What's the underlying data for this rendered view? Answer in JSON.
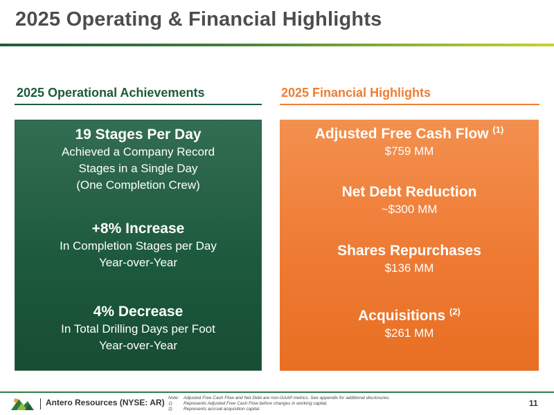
{
  "title": "2025 Operating & Financial Highlights",
  "operational": {
    "heading": "2025 Operational Achievements",
    "items": [
      {
        "title": "19 Stages Per Day",
        "lines": [
          "Achieved a Company Record",
          "Stages in a Single Day",
          "(One Completion Crew)"
        ]
      },
      {
        "title": "+8% Increase",
        "lines": [
          "In Completion Stages per Day",
          "Year-over-Year"
        ]
      },
      {
        "title": "4% Decrease",
        "lines": [
          "In Total Drilling Days per Foot",
          "Year-over-Year"
        ]
      }
    ]
  },
  "financial": {
    "heading": "2025 Financial Highlights",
    "items": [
      {
        "title": "Adjusted Free Cash Flow",
        "footnote": "(1)",
        "value": "$759 MM"
      },
      {
        "title": "Net Debt Reduction",
        "footnote": "",
        "value": "~$300 MM"
      },
      {
        "title": "Shares Repurchases",
        "footnote": "",
        "value": "$136 MM"
      },
      {
        "title": "Acquisitions",
        "footnote": "(2)",
        "value": "$261 MM"
      }
    ]
  },
  "footer": {
    "company": "Antero Resources (NYSE: AR)",
    "note_label": "Note:",
    "note": "Adjusted Free Cash Flow and Net Debt are non-GAAP metrics. See appendix for additional disclosures.",
    "footnotes": [
      {
        "num": "1)",
        "text": "Represents Adjusted Free Cash Flow before changes in working capital."
      },
      {
        "num": "2)",
        "text": "Represents accrual acquisition capital."
      }
    ],
    "page_number": "11"
  },
  "colors": {
    "green": "#1d5a3d",
    "orange": "#ee7d31",
    "title_gray": "#4d4d4d"
  }
}
